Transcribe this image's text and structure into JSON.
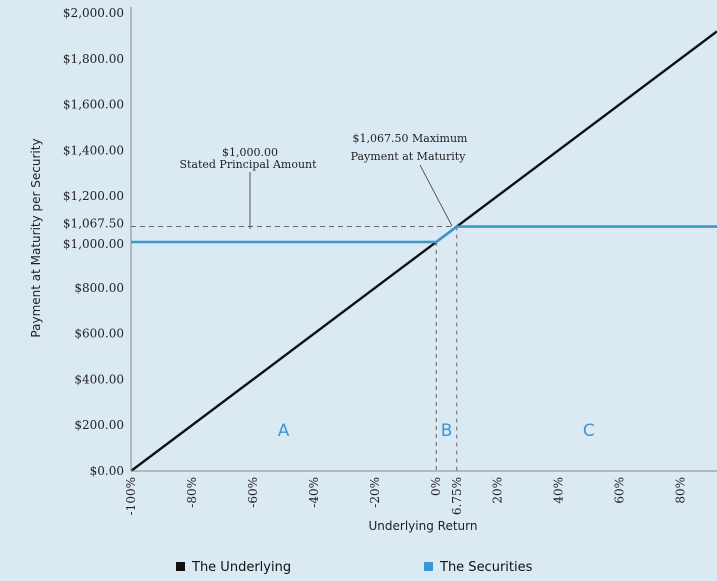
{
  "chart_data": {
    "type": "line",
    "xlabel": "Underlying Return",
    "ylabel": "Payment at Maturity per Security",
    "xlim": [
      -100,
      92
    ],
    "ylim": [
      0,
      2000
    ],
    "x_ticks": [
      {
        "value": -100,
        "label": "-100%"
      },
      {
        "value": -80,
        "label": "-80%"
      },
      {
        "value": -60,
        "label": "-60%"
      },
      {
        "value": -40,
        "label": "-40%"
      },
      {
        "value": -20,
        "label": "-20%"
      },
      {
        "value": 0,
        "label": "0%"
      },
      {
        "value": 6.75,
        "label": "6.75%"
      },
      {
        "value": 20,
        "label": "20%"
      },
      {
        "value": 40,
        "label": "40%"
      },
      {
        "value": 60,
        "label": "60%"
      },
      {
        "value": 80,
        "label": "80%"
      }
    ],
    "y_ticks": [
      {
        "value": 0,
        "label": "$0.00"
      },
      {
        "value": 200,
        "label": "$200.00"
      },
      {
        "value": 400,
        "label": "$400.00"
      },
      {
        "value": 600,
        "label": "$600.00"
      },
      {
        "value": 800,
        "label": "$800.00"
      },
      {
        "value": 1000,
        "label": "$1,000.00"
      },
      {
        "value": 1067.5,
        "label": "$1,067.50"
      },
      {
        "value": 1200,
        "label": "$1,200.00"
      },
      {
        "value": 1400,
        "label": "$1,400.00"
      },
      {
        "value": 1600,
        "label": "$1,600.00"
      },
      {
        "value": 1800,
        "label": "$1,800.00"
      },
      {
        "value": 2000,
        "label": "$2,000.00"
      }
    ],
    "series": [
      {
        "name": "The Underlying",
        "color": "#111111",
        "x": [
          -100,
          92
        ],
        "y": [
          0,
          1920
        ]
      },
      {
        "name": "The Securities",
        "color": "#3a97d4",
        "x": [
          -100,
          0,
          6.75,
          92
        ],
        "y": [
          1000,
          1000,
          1067.5,
          1067.5
        ]
      }
    ],
    "reference_lines": {
      "horizontal": [
        1067.5
      ],
      "vertical": [
        0,
        6.75
      ]
    },
    "annotations": [
      {
        "line1": "$1,000.00",
        "line2": "Stated Principal Amount"
      },
      {
        "line1": "$1,067.50 Maximum",
        "line2": "Payment at Maturity"
      }
    ],
    "regions": [
      {
        "label": "A",
        "x": -50
      },
      {
        "label": "B",
        "x": 3.4
      },
      {
        "label": "C",
        "x": 50
      }
    ],
    "grid": false,
    "legend": "bottom"
  }
}
